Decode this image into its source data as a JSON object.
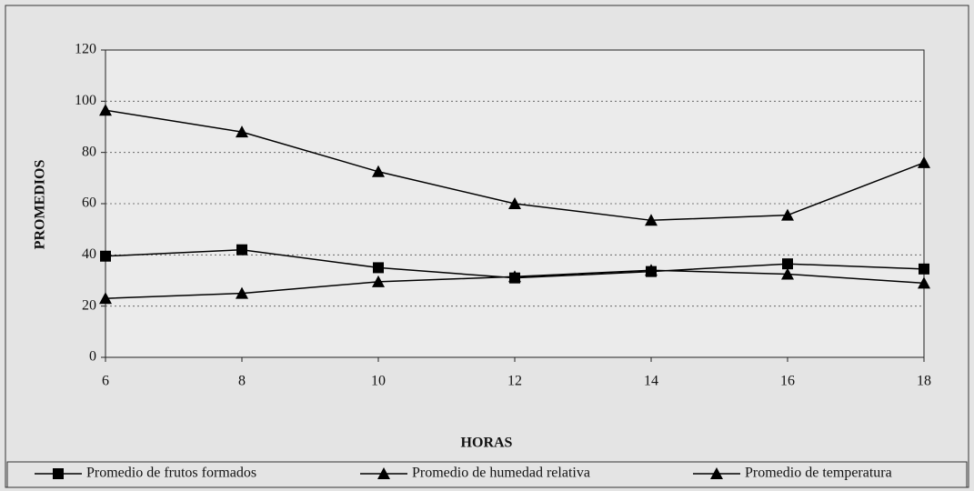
{
  "chart_data": {
    "type": "line",
    "x_label": "HORAS",
    "y_label": "PROMEDIOS",
    "x": [
      6,
      8,
      10,
      12,
      14,
      16,
      18
    ],
    "xlim": [
      6,
      18
    ],
    "xticks": [
      6,
      8,
      10,
      12,
      14,
      16,
      18
    ],
    "ylim": [
      0,
      120
    ],
    "yticks": [
      0,
      20,
      40,
      60,
      80,
      100,
      120
    ],
    "grid": true,
    "legend": "bottom",
    "series": [
      {
        "name": "Promedio de frutos formados",
        "color": "#000000",
        "marker": "square",
        "values": [
          39.5,
          42,
          35,
          31,
          33.5,
          36.5,
          34.5
        ]
      },
      {
        "name": "Promedio de humedad relativa",
        "color": "#000000",
        "marker": "triangle",
        "values": [
          96.5,
          88,
          72.5,
          60,
          53.5,
          55.5,
          76
        ]
      },
      {
        "name": "Promedio de temperatura",
        "color": "#000000",
        "marker": "triangle",
        "values": [
          23,
          25,
          29.5,
          31.5,
          34,
          32.5,
          29
        ]
      }
    ]
  }
}
